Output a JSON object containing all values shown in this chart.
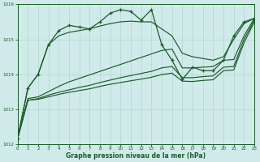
{
  "xlabel": "Graphe pression niveau de la mer (hPa)",
  "ylim": [
    1012.0,
    1016.0
  ],
  "xlim": [
    0,
    23
  ],
  "yticks": [
    1012,
    1013,
    1014,
    1015,
    1016
  ],
  "xticks": [
    0,
    1,
    2,
    3,
    4,
    5,
    6,
    7,
    8,
    9,
    10,
    11,
    12,
    13,
    14,
    15,
    16,
    17,
    18,
    19,
    20,
    21,
    22,
    23
  ],
  "bg_color": "#d0eaea",
  "line_color": "#1a5c28",
  "grid_color": "#b8d8d8",
  "series_main": [
    1012.15,
    1013.6,
    1014.0,
    1014.85,
    1015.25,
    1015.4,
    1015.35,
    1015.3,
    1015.5,
    1015.75,
    1015.85,
    1015.8,
    1015.55,
    1015.85,
    1014.85,
    1014.4,
    1013.85,
    1014.2,
    1014.1,
    1014.1,
    1014.4,
    1015.1,
    1015.5,
    1015.6
  ],
  "series_upper": [
    1012.15,
    1013.6,
    1014.0,
    1014.85,
    1015.1,
    1015.2,
    1015.25,
    1015.3,
    1015.38,
    1015.45,
    1015.5,
    1015.52,
    1015.5,
    1015.5,
    1015.3,
    1015.1,
    1014.6,
    1014.5,
    1014.45,
    1014.4,
    1014.5,
    1015.0,
    1015.45,
    1015.6
  ],
  "series_mid": [
    1012.15,
    1013.3,
    1013.35,
    1013.5,
    1013.65,
    1013.78,
    1013.88,
    1013.98,
    1014.08,
    1014.18,
    1014.28,
    1014.38,
    1014.48,
    1014.58,
    1014.68,
    1014.72,
    1014.18,
    1014.18,
    1014.2,
    1014.22,
    1014.4,
    1014.42,
    1015.1,
    1015.6
  ],
  "series_low1": [
    1012.15,
    1013.25,
    1013.3,
    1013.4,
    1013.48,
    1013.55,
    1013.62,
    1013.68,
    1013.76,
    1013.83,
    1013.9,
    1013.96,
    1014.02,
    1014.08,
    1014.18,
    1014.22,
    1013.9,
    1013.9,
    1013.93,
    1013.95,
    1014.2,
    1014.22,
    1015.0,
    1015.55
  ],
  "series_low2": [
    1012.15,
    1013.25,
    1013.28,
    1013.35,
    1013.42,
    1013.48,
    1013.53,
    1013.58,
    1013.65,
    1013.71,
    1013.76,
    1013.81,
    1013.86,
    1013.91,
    1013.99,
    1014.03,
    1013.8,
    1013.79,
    1013.82,
    1013.84,
    1014.1,
    1014.12,
    1014.9,
    1015.5
  ]
}
